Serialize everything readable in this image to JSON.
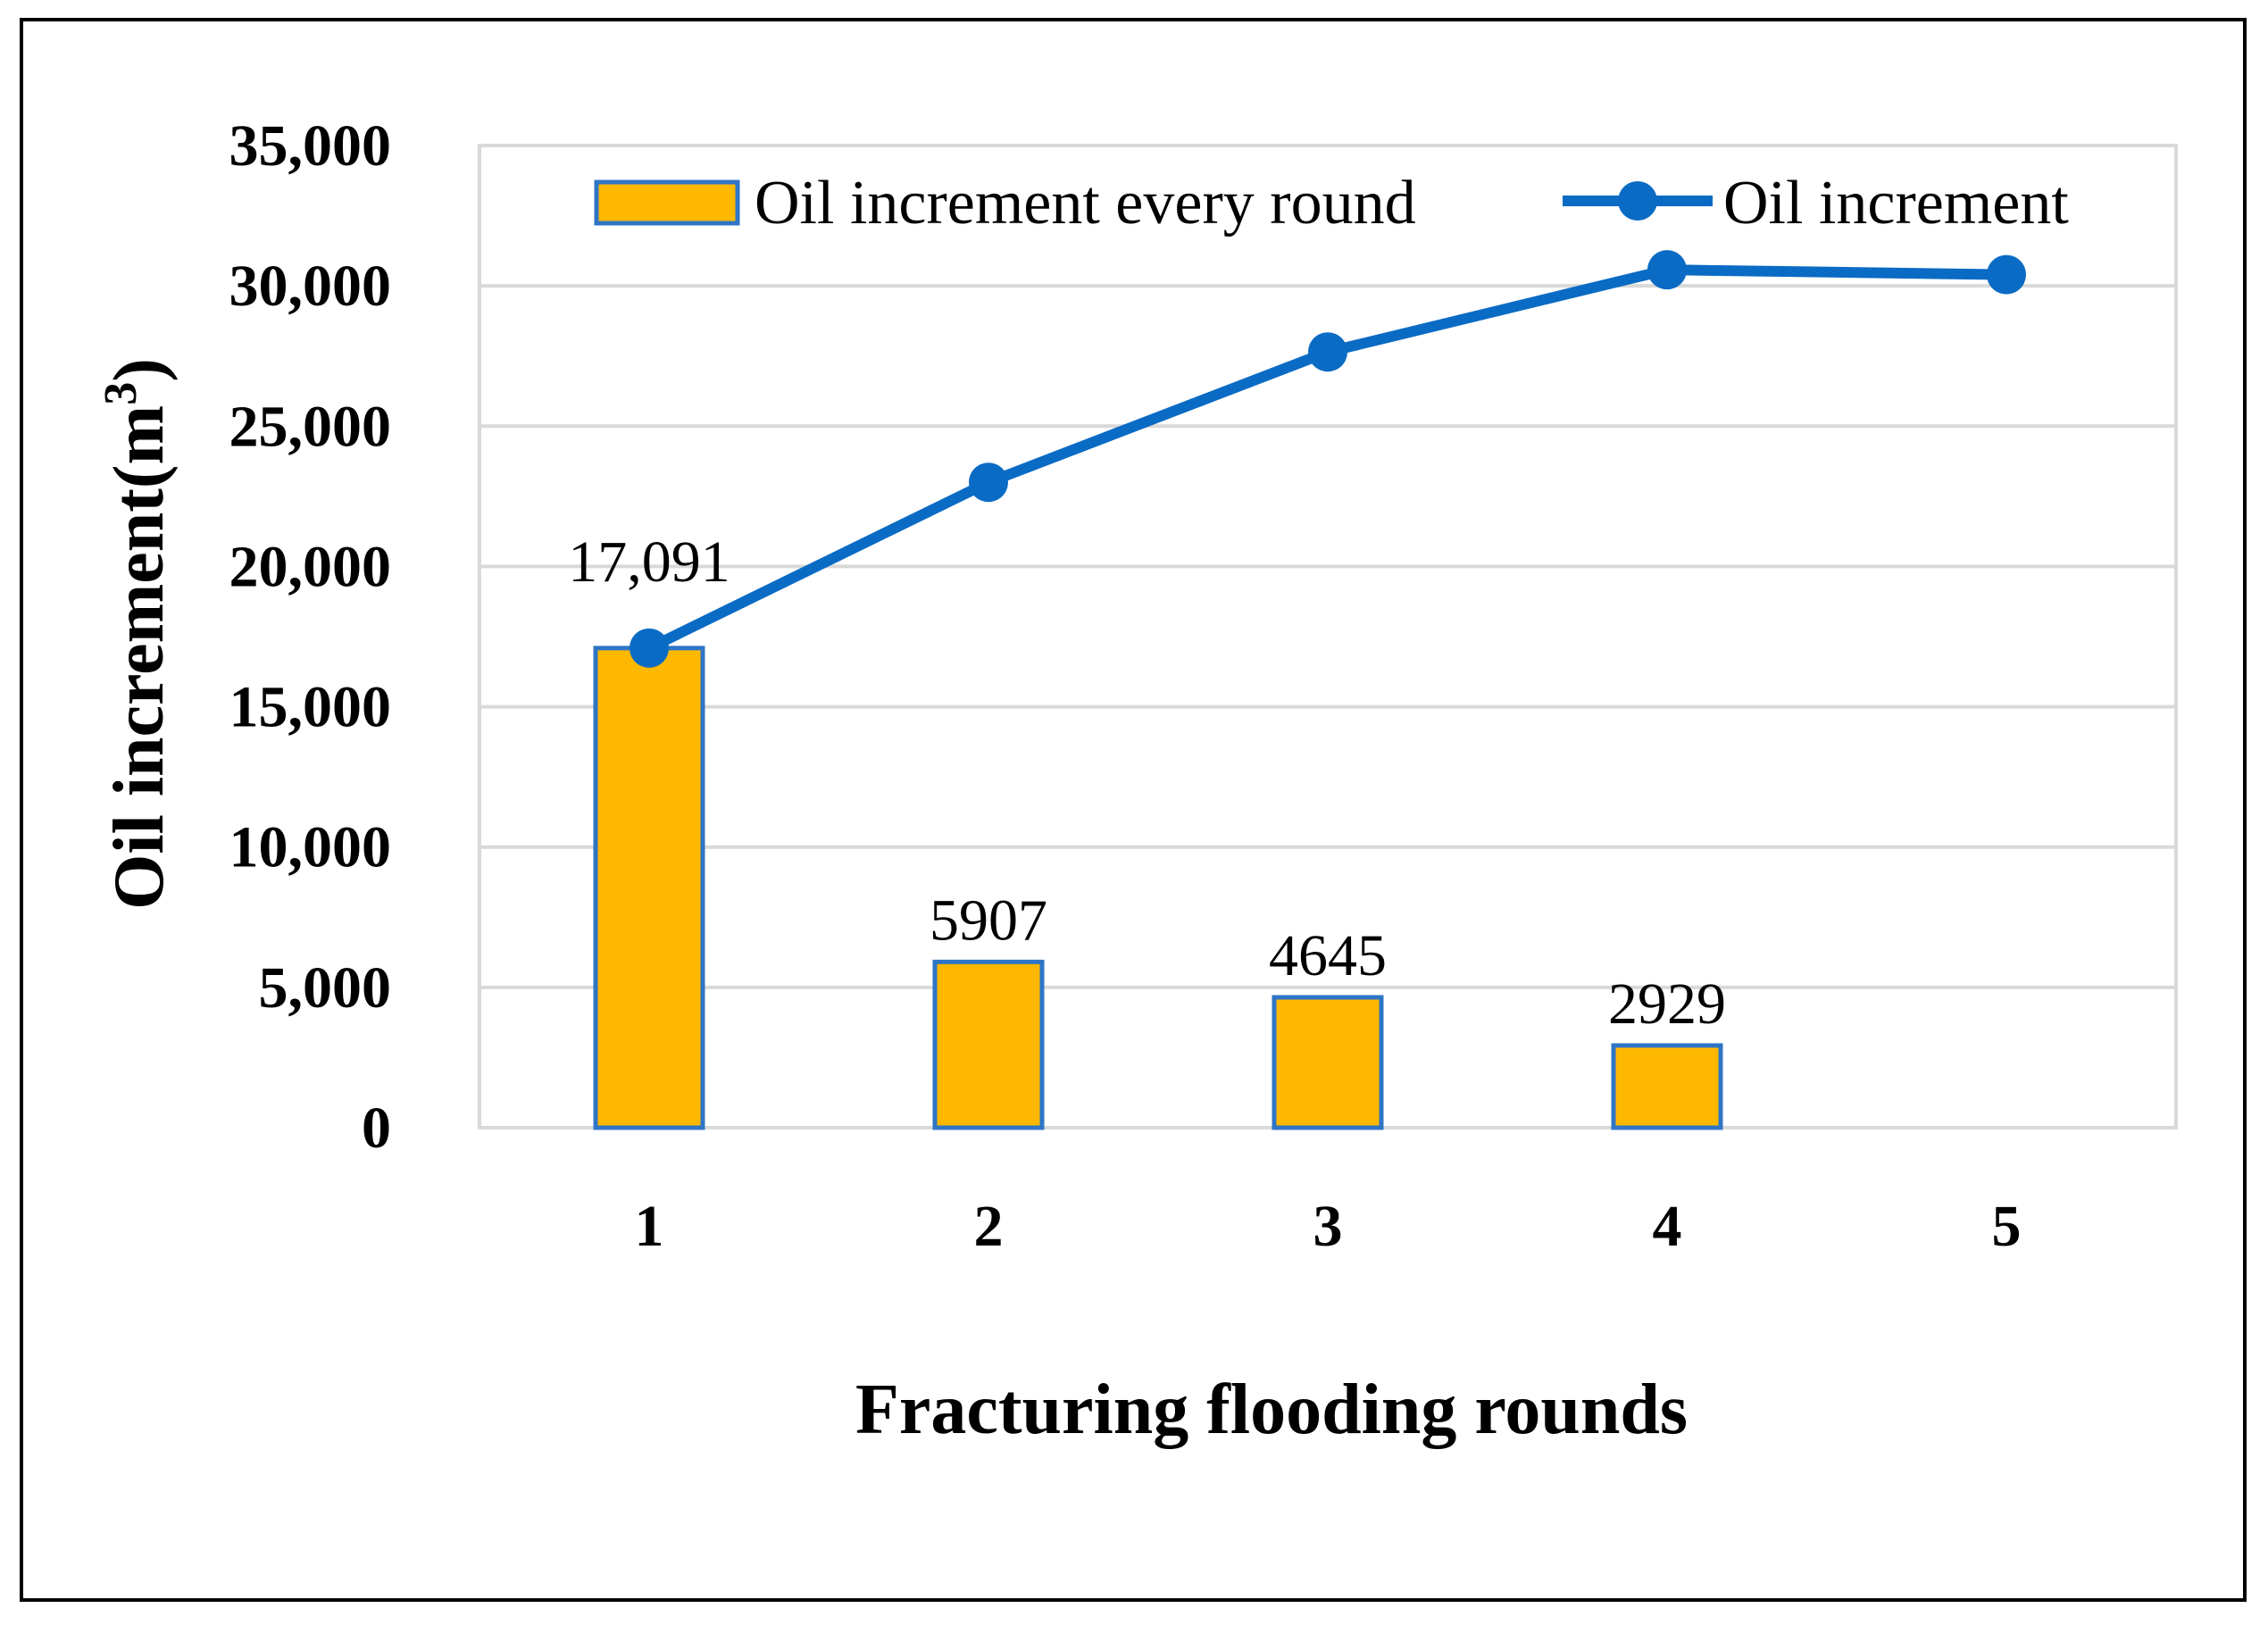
{
  "chart_data": {
    "type": "bar",
    "categories": [
      "1",
      "2",
      "3",
      "4",
      "5"
    ],
    "series": [
      {
        "name": "Oil increment every round",
        "kind": "bar",
        "values": [
          17091,
          5907,
          4645,
          2929,
          0
        ],
        "data_labels": [
          "17,091",
          "5907",
          "4645",
          "2929",
          ""
        ]
      },
      {
        "name": "Oil increment",
        "kind": "line",
        "values": [
          17091,
          22998,
          27643,
          30572,
          30400
        ]
      }
    ],
    "xlabel": "Fracturing flooding rounds",
    "ylabel": {
      "main": "Oil increment(m",
      "sup": "3",
      "end": ")"
    },
    "ylim": [
      0,
      35000
    ],
    "yticks": [
      0,
      5000,
      10000,
      15000,
      20000,
      25000,
      30000,
      35000
    ],
    "ytick_labels": [
      "0",
      "5,000",
      "10,000",
      "15,000",
      "20,000",
      "25,000",
      "30,000",
      "35,000"
    ],
    "grid": true,
    "legend_position": "top-right",
    "colors": {
      "bar_fill": "#FFB800",
      "bar_edge": "#2E75C6",
      "line": "#0A6BC4",
      "grid": "#D9D9D9"
    }
  }
}
